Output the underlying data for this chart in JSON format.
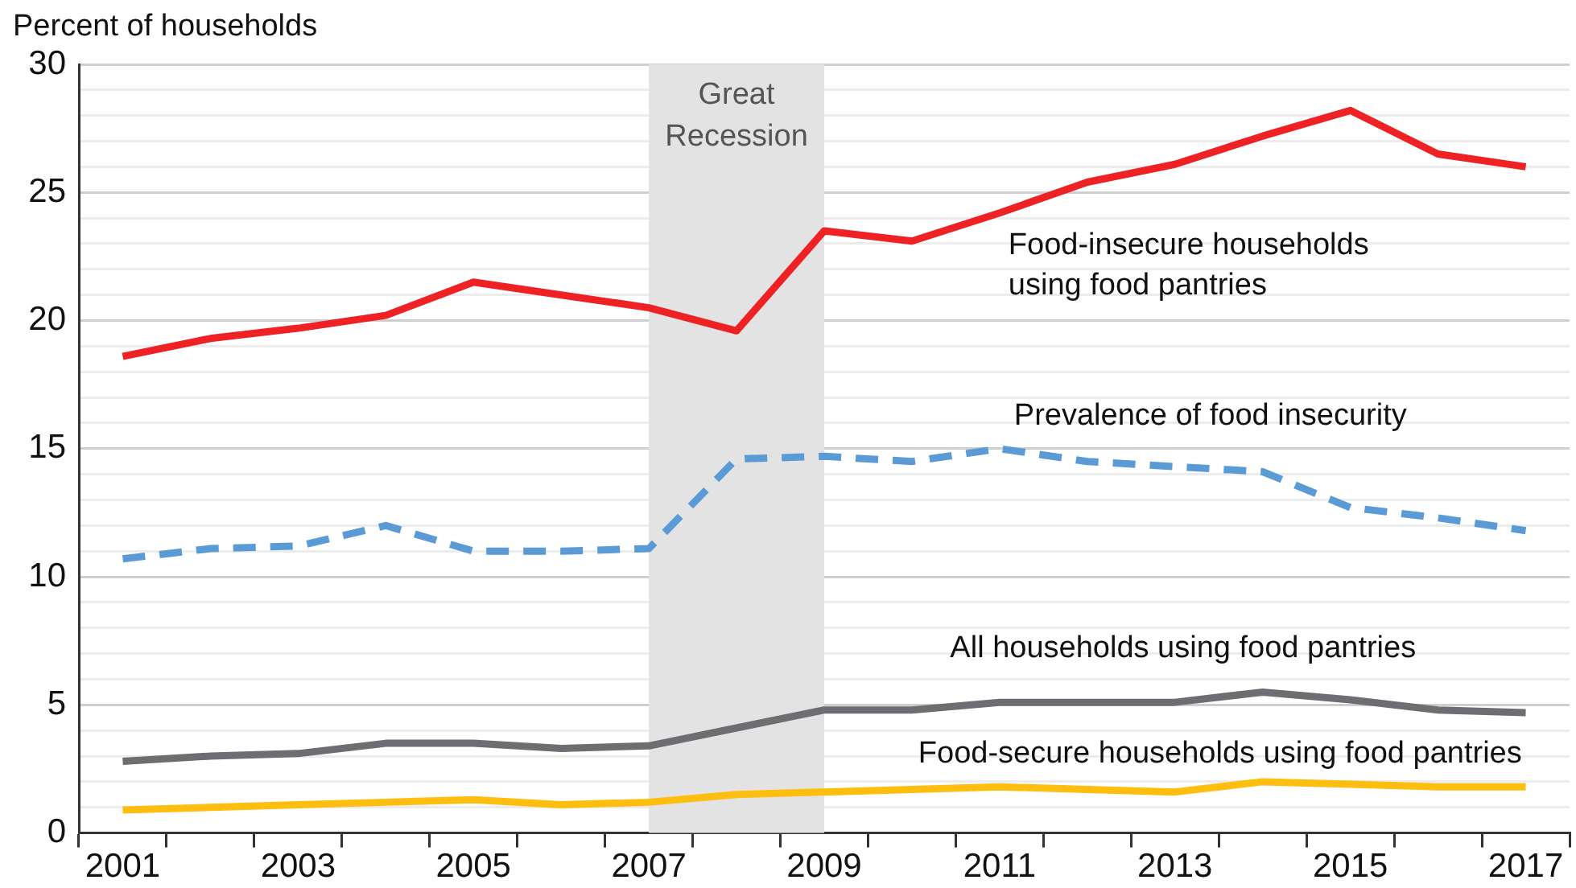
{
  "chart_data": {
    "type": "line",
    "ylabel": "Percent of households",
    "categories": [
      "2001",
      null,
      "2003",
      null,
      "2005",
      null,
      "2007",
      null,
      "2009",
      null,
      "2011",
      null,
      "2013",
      null,
      "2015",
      null,
      "2017"
    ],
    "series": [
      {
        "name": "Food-insecure households using food pantries",
        "color": "#ee2224",
        "values": [
          18.6,
          19.3,
          19.7,
          20.2,
          21.5,
          21.0,
          20.5,
          19.6,
          23.5,
          23.1,
          24.2,
          25.4,
          26.1,
          27.2,
          28.2,
          26.5,
          26.0
        ]
      },
      {
        "name": "Prevalence of food insecurity",
        "color": "#5b9bd5",
        "line_style": "dashed",
        "values": [
          10.7,
          11.1,
          11.2,
          12.0,
          11.0,
          11.0,
          11.1,
          14.6,
          14.7,
          14.5,
          15.0,
          14.5,
          14.3,
          14.1,
          12.7,
          12.3,
          11.8
        ]
      },
      {
        "name": "All households using food pantries",
        "color": "#6d6e71",
        "values": [
          2.8,
          3.0,
          3.1,
          3.5,
          3.5,
          3.3,
          3.4,
          4.1,
          4.8,
          4.8,
          5.1,
          5.1,
          5.1,
          5.5,
          5.2,
          4.8,
          4.7
        ]
      },
      {
        "name": "Food-secure households using food pantries",
        "color": "#fdbe10",
        "values": [
          0.9,
          1.0,
          1.1,
          1.2,
          1.3,
          1.1,
          1.2,
          1.5,
          1.6,
          1.7,
          1.8,
          1.7,
          1.6,
          2.0,
          1.9,
          1.8,
          1.8
        ]
      }
    ],
    "ylim": [
      0,
      30
    ],
    "yticks": [
      0,
      {
        "value": 1,
        "label": null
      },
      {
        "value": 2,
        "label": null
      },
      {
        "value": 3,
        "label": null
      },
      {
        "value": 4,
        "label": null
      },
      5,
      {
        "value": 6,
        "label": null
      },
      {
        "value": 7,
        "label": null
      },
      {
        "value": 8,
        "label": null
      },
      {
        "value": 9,
        "label": null
      },
      10,
      {
        "value": 11,
        "label": null
      },
      {
        "value": 12,
        "label": null
      },
      {
        "value": 13,
        "label": null
      },
      {
        "value": 14,
        "label": null
      },
      15,
      {
        "value": 16,
        "label": null
      },
      {
        "value": 17,
        "label": null
      },
      {
        "value": 18,
        "label": null
      },
      {
        "value": 19,
        "label": null
      },
      20,
      {
        "value": 21,
        "label": null
      },
      {
        "value": 22,
        "label": null
      },
      {
        "value": 23,
        "label": null
      },
      {
        "value": 24,
        "label": null
      },
      25,
      {
        "value": 26,
        "label": null
      },
      {
        "value": 27,
        "label": null
      },
      {
        "value": 28,
        "label": null
      },
      {
        "value": 29,
        "label": null
      },
      30
    ],
    "bands": [
      {
        "axis": "x",
        "from": "2007",
        "to": "2009",
        "label": "Great Recession",
        "color": "#e3e3e3"
      }
    ],
    "grid": "y",
    "legend": false,
    "marker": "none",
    "line_style": "solid"
  }
}
